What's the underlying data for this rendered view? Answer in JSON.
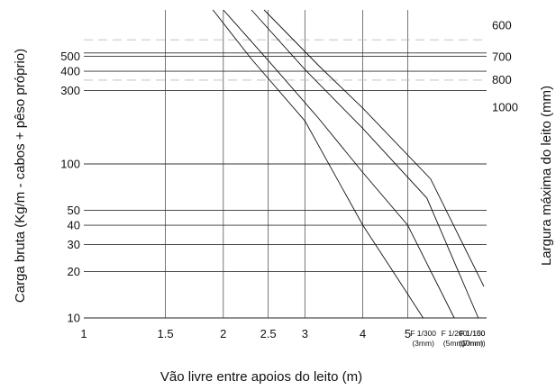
{
  "chart_data": {
    "type": "line",
    "title": "",
    "xlabel": "Vão livre entre apoios do leito (m)",
    "ylabel": "Carga bruta (Kg/m - cabos  + pêso próprio)",
    "y2label": "Largura máxima do leito (mm)",
    "x_scale": "log",
    "y_scale": "log",
    "xlim": [
      1,
      7.4
    ],
    "ylim": [
      10,
      1000
    ],
    "x_ticks": [
      1,
      1.5,
      2,
      2.5,
      3,
      4,
      5
    ],
    "x_tick_labels": [
      "1",
      "1.5",
      "2",
      "2.5",
      "3",
      "4",
      "5"
    ],
    "y_ticks": [
      10,
      20,
      30,
      40,
      50,
      100,
      300,
      400,
      500
    ],
    "y_tick_labels": [
      "10",
      "20",
      "30",
      "40",
      "50",
      "100",
      "300",
      "400",
      "500"
    ],
    "grid": true,
    "horizontal_reference_lines": [
      {
        "y": 525,
        "style": "solid"
      },
      {
        "y": 350,
        "style": "dashed"
      },
      {
        "y": 640,
        "style": "dashed"
      }
    ],
    "right_labels": [
      {
        "label": "600",
        "y": 800
      },
      {
        "label": "700",
        "y": 500
      },
      {
        "label": "800",
        "y": 355
      },
      {
        "label": "1000",
        "y": 235
      }
    ],
    "series": [
      {
        "name": "F 1/300",
        "sub": "(3mm)",
        "x": [
          1.9,
          2.3,
          3,
          4,
          4.65,
          5.4
        ],
        "y": [
          1000,
          480,
          190,
          40,
          20,
          10
        ]
      },
      {
        "name": "F 1/200",
        "sub": "(5mm)",
        "x": [
          2.0,
          2.5,
          3.2,
          4,
          5,
          6.3
        ],
        "y": [
          1000,
          470,
          200,
          88,
          40,
          10
        ]
      },
      {
        "name": "F 1/150",
        "sub": "(7mm)",
        "x": [
          2.3,
          3,
          4,
          5.5,
          7.1
        ],
        "y": [
          1000,
          410,
          170,
          60,
          10
        ]
      },
      {
        "name": "F 1/100",
        "sub": "(10mm)",
        "x": [
          2.45,
          3.2,
          4,
          5.6,
          7.3
        ],
        "y": [
          1000,
          440,
          230,
          80,
          16
        ]
      }
    ]
  }
}
